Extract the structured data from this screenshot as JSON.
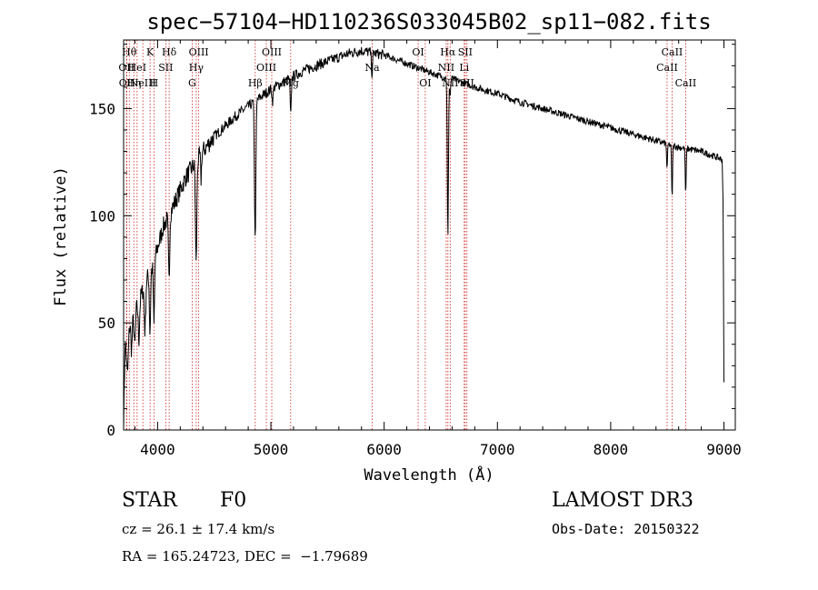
{
  "chart_data": {
    "type": "line",
    "title": "spec−57104−HD110236S033045B02_sp11−082.fits",
    "xlabel": "Wavelength (Å)",
    "ylabel": "Flux (relative)",
    "xlim": [
      3700,
      9100
    ],
    "ylim": [
      0,
      182
    ],
    "xticks": [
      4000,
      5000,
      6000,
      7000,
      8000,
      9000
    ],
    "xtick_labels": [
      "4000",
      "5000",
      "6000",
      "7000",
      "8000",
      "9000"
    ],
    "yticks": [
      0,
      50,
      100,
      150
    ],
    "ytick_labels": [
      "0",
      "50",
      "100",
      "150"
    ],
    "series": [
      {
        "name": "flux",
        "continuum": [
          [
            3700,
            0
          ],
          [
            3712,
            40
          ],
          [
            3740,
            48
          ],
          [
            3800,
            55
          ],
          [
            3850,
            62
          ],
          [
            3900,
            70
          ],
          [
            3950,
            75
          ],
          [
            4000,
            85
          ],
          [
            4050,
            95
          ],
          [
            4100,
            100
          ],
          [
            4150,
            106
          ],
          [
            4200,
            112
          ],
          [
            4250,
            118
          ],
          [
            4300,
            122
          ],
          [
            4350,
            126
          ],
          [
            4400,
            130
          ],
          [
            4500,
            137
          ],
          [
            4600,
            142
          ],
          [
            4700,
            147
          ],
          [
            4800,
            151
          ],
          [
            4900,
            155
          ],
          [
            5000,
            159
          ],
          [
            5100,
            162
          ],
          [
            5200,
            165
          ],
          [
            5300,
            168
          ],
          [
            5400,
            170
          ],
          [
            5500,
            172
          ],
          [
            5600,
            174
          ],
          [
            5700,
            176
          ],
          [
            5800,
            177
          ],
          [
            5900,
            176
          ],
          [
            6000,
            175
          ],
          [
            6100,
            173
          ],
          [
            6200,
            171
          ],
          [
            6300,
            169
          ],
          [
            6400,
            167
          ],
          [
            6500,
            165
          ],
          [
            6600,
            164
          ],
          [
            6700,
            162
          ],
          [
            6800,
            160
          ],
          [
            7000,
            157
          ],
          [
            7200,
            153
          ],
          [
            7400,
            150
          ],
          [
            7600,
            147
          ],
          [
            7800,
            144
          ],
          [
            8000,
            141
          ],
          [
            8200,
            138
          ],
          [
            8400,
            135
          ],
          [
            8600,
            132
          ],
          [
            8800,
            130
          ],
          [
            8950,
            127
          ],
          [
            8985,
            126
          ],
          [
            8993,
            105
          ],
          [
            9000,
            22
          ]
        ],
        "absorption": [
          [
            3734,
            20,
            8
          ],
          [
            3770,
            14,
            6
          ],
          [
            3798,
            16,
            6
          ],
          [
            3835,
            18,
            6
          ],
          [
            3889,
            22,
            6
          ],
          [
            3933,
            28,
            5
          ],
          [
            3968,
            30,
            5
          ],
          [
            4101,
            30,
            6
          ],
          [
            4340,
            48,
            6
          ],
          [
            4384,
            12,
            4
          ],
          [
            4861,
            65,
            6
          ],
          [
            5015,
            6,
            5
          ],
          [
            5175,
            18,
            5
          ],
          [
            5893,
            10,
            5
          ],
          [
            6563,
            75,
            5
          ],
          [
            6583,
            8,
            4
          ],
          [
            8498,
            12,
            4
          ],
          [
            8542,
            25,
            4
          ],
          [
            8662,
            22,
            4
          ]
        ]
      }
    ],
    "lines": [
      {
        "wl": 3726,
        "label": "OII",
        "row": 1
      },
      {
        "wl": 3729,
        "label": "OII",
        "row": 2
      },
      {
        "wl": 3750,
        "label": "Hθ",
        "row": 0
      },
      {
        "wl": 3790,
        "label": "Hη",
        "row": 2
      },
      {
        "wl": 3819,
        "label": "HeI",
        "row": 1
      },
      {
        "wl": 3870,
        "label": "NeIII",
        "row": 2
      },
      {
        "wl": 3934,
        "label": "K",
        "row": 0
      },
      {
        "wl": 3968,
        "label": "H",
        "row": 2
      },
      {
        "wl": 4072,
        "label": "SII",
        "row": 1
      },
      {
        "wl": 4102,
        "label": "Hδ",
        "row": 0
      },
      {
        "wl": 4305,
        "label": "G",
        "row": 2
      },
      {
        "wl": 4341,
        "label": "Hγ",
        "row": 1
      },
      {
        "wl": 4363,
        "label": "OIII",
        "row": 0
      },
      {
        "wl": 4862,
        "label": "Hβ",
        "row": 2
      },
      {
        "wl": 4960,
        "label": "OIII",
        "row": 1
      },
      {
        "wl": 5008,
        "label": "OIII",
        "row": 0
      },
      {
        "wl": 5175,
        "label": "Mg",
        "row": 2
      },
      {
        "wl": 5894,
        "label": "Na",
        "row": 1
      },
      {
        "wl": 6300,
        "label": "OI",
        "row": 0
      },
      {
        "wl": 6363,
        "label": "OI",
        "row": 2
      },
      {
        "wl": 6548,
        "label": "NII",
        "row": 1
      },
      {
        "wl": 6563,
        "label": "Hα",
        "row": 0
      },
      {
        "wl": 6583,
        "label": "NII",
        "row": 2
      },
      {
        "wl": 6707,
        "label": "Li",
        "row": 1
      },
      {
        "wl": 6716,
        "label": "SII",
        "row": 0
      },
      {
        "wl": 6731,
        "label": "SII",
        "row": 2
      },
      {
        "wl": 8498,
        "label": "CaII",
        "row": 1
      },
      {
        "wl": 8542,
        "label": "CaII",
        "row": 0
      },
      {
        "wl": 8662,
        "label": "CaII",
        "row": 2
      }
    ]
  },
  "info": {
    "class": "STAR",
    "subclass": "F0",
    "survey": "LAMOST DR3",
    "cz": "cz = 26.1 ± 17.4 km/s",
    "obs_date": "Obs-Date: 20150322",
    "coords": "RA = 165.24723, DEC =  −1.79689"
  }
}
